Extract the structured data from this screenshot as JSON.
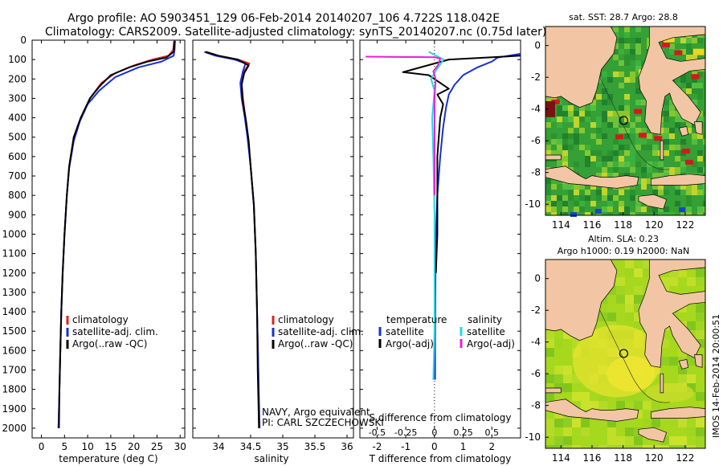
{
  "header": {
    "line1": "Argo profile: AO 5903451_129 06-Feb-2014 20140207_106 4.722S 118.042E",
    "line2": "Climatology: CARS2009. Satellite-adjusted climatology: synTS_20140207.nc (0.75d later)"
  },
  "colors": {
    "climatology": "#e0241b",
    "satellite": "#1530d8",
    "argo": "#000000",
    "sat_salinity": "#22d8e6",
    "argo_salinity": "#e81ed8",
    "land": "#f2c6a4",
    "sea_green": "#3aa83a",
    "sla_green": "#9ad420"
  },
  "chart_data": [
    {
      "type": "line",
      "title": "",
      "xlabel": "temperature (deg C)",
      "ylabel": "",
      "xlim": [
        -2,
        31
      ],
      "ylim": [
        2050,
        0
      ],
      "xticks": [
        0,
        5,
        10,
        15,
        20,
        25,
        30
      ],
      "yticks": [
        0,
        100,
        200,
        300,
        400,
        500,
        600,
        700,
        800,
        900,
        1000,
        1100,
        1200,
        1300,
        1400,
        1500,
        1600,
        1700,
        1800,
        1900,
        2000
      ],
      "legend": [
        "climatology",
        "satellite-adj. clim.",
        "Argo(..raw -QC)"
      ],
      "series": [
        {
          "name": "climatology",
          "color": "#e0241b",
          "points": [
            [
              28.7,
              0
            ],
            [
              28.5,
              50
            ],
            [
              27.5,
              80
            ],
            [
              24,
              100
            ],
            [
              20,
              130
            ],
            [
              16,
              170
            ],
            [
              13,
              220
            ],
            [
              10.5,
              300
            ],
            [
              8.5,
              400
            ],
            [
              7,
              500
            ],
            [
              6,
              650
            ],
            [
              5.5,
              800
            ],
            [
              5,
              1000
            ],
            [
              4.6,
              1200
            ],
            [
              4.3,
              1400
            ],
            [
              4.1,
              1600
            ],
            [
              3.9,
              1800
            ],
            [
              3.7,
              2000
            ]
          ]
        },
        {
          "name": "satellite-adj. clim.",
          "color": "#1530d8",
          "points": [
            [
              28.9,
              0
            ],
            [
              28.8,
              50
            ],
            [
              28.6,
              80
            ],
            [
              26,
              110
            ],
            [
              21,
              140
            ],
            [
              16,
              190
            ],
            [
              12.5,
              260
            ],
            [
              10,
              330
            ],
            [
              8.3,
              420
            ],
            [
              7,
              520
            ],
            [
              6,
              660
            ],
            [
              5.5,
              800
            ],
            [
              5,
              1000
            ],
            [
              4.6,
              1200
            ],
            [
              4.3,
              1400
            ],
            [
              4.1,
              1600
            ],
            [
              3.9,
              1800
            ],
            [
              3.7,
              2000
            ]
          ]
        },
        {
          "name": "Argo(..raw -QC)",
          "color": "#000000",
          "points": [
            [
              28.8,
              5
            ],
            [
              28.6,
              60
            ],
            [
              27,
              90
            ],
            [
              23,
              110
            ],
            [
              19,
              140
            ],
            [
              15,
              180
            ],
            [
              12.5,
              240
            ],
            [
              10.5,
              300
            ],
            [
              8.5,
              400
            ],
            [
              7,
              500
            ],
            [
              6,
              650
            ],
            [
              5.5,
              800
            ],
            [
              5,
              1000
            ],
            [
              4.6,
              1200
            ],
            [
              4.3,
              1400
            ],
            [
              4.1,
              1600
            ],
            [
              3.9,
              1800
            ],
            [
              3.8,
              2000
            ]
          ]
        }
      ]
    },
    {
      "type": "line",
      "title": "",
      "xlabel": "salinity",
      "xlim": [
        33.6,
        36.1
      ],
      "ylim": [
        2050,
        0
      ],
      "xticks": [
        34,
        34.5,
        35,
        35.5,
        36
      ],
      "legend": [
        "climatology",
        "satellite-adj. clim.",
        "Argo(..raw -QC)"
      ],
      "annotation": [
        "NAVY, Argo equivalent",
        "PI: CARL SZCZECHOWSKI"
      ],
      "series": [
        {
          "name": "climatology",
          "color": "#e0241b",
          "points": [
            [
              33.8,
              60
            ],
            [
              34.0,
              80
            ],
            [
              34.3,
              100
            ],
            [
              34.48,
              120
            ],
            [
              34.4,
              160
            ],
            [
              34.36,
              220
            ],
            [
              34.38,
              300
            ],
            [
              34.42,
              400
            ],
            [
              34.46,
              500
            ],
            [
              34.5,
              650
            ],
            [
              34.55,
              850
            ],
            [
              34.58,
              1100
            ],
            [
              34.6,
              1400
            ],
            [
              34.62,
              1700
            ],
            [
              34.63,
              2000
            ]
          ]
        },
        {
          "name": "satellite-adj. clim.",
          "color": "#1530d8",
          "points": [
            [
              33.78,
              60
            ],
            [
              33.95,
              80
            ],
            [
              34.25,
              100
            ],
            [
              34.42,
              120
            ],
            [
              34.38,
              160
            ],
            [
              34.34,
              220
            ],
            [
              34.36,
              300
            ],
            [
              34.41,
              400
            ],
            [
              34.45,
              500
            ],
            [
              34.5,
              650
            ],
            [
              34.55,
              850
            ],
            [
              34.58,
              1100
            ],
            [
              34.6,
              1400
            ],
            [
              34.62,
              1700
            ],
            [
              34.64,
              2000
            ]
          ]
        },
        {
          "name": "Argo(..raw -QC)",
          "color": "#000000",
          "points": [
            [
              33.8,
              60
            ],
            [
              34.0,
              80
            ],
            [
              34.3,
              100
            ],
            [
              34.47,
              130
            ],
            [
              34.4,
              170
            ],
            [
              34.36,
              230
            ],
            [
              34.38,
              320
            ],
            [
              34.43,
              420
            ],
            [
              34.47,
              520
            ],
            [
              34.5,
              650
            ],
            [
              34.55,
              850
            ],
            [
              34.58,
              1100
            ],
            [
              34.6,
              1400
            ],
            [
              34.61,
              1700
            ],
            [
              34.63,
              2000
            ]
          ]
        }
      ]
    },
    {
      "type": "line",
      "title": "",
      "xlabel": "T difference from climatology",
      "xlabel2": "S difference from climatology",
      "xlim": [
        -2.6,
        3.0
      ],
      "ylim": [
        2050,
        0
      ],
      "xticks": [
        -2,
        -1,
        0,
        1,
        2
      ],
      "xticks_s": [
        "-0.5",
        "-0.25",
        "0",
        "0.25",
        "0.5"
      ],
      "xticks_s_values": [
        -0.5,
        -0.25,
        0,
        0.25,
        0.5
      ],
      "legend_temperature_title": "temperature",
      "legend_salinity_title": "salinity",
      "legend": [
        "satellite",
        "Argo(-adj)",
        "satellite",
        "Argo(-adj)"
      ],
      "series": [
        {
          "name": "T satellite",
          "color": "#1530d8",
          "points": [
            [
              3,
              70
            ],
            [
              2.2,
              90
            ],
            [
              2,
              110
            ],
            [
              1.5,
              140
            ],
            [
              1.0,
              180
            ],
            [
              0.7,
              230
            ],
            [
              0.5,
              280
            ],
            [
              0.4,
              350
            ],
            [
              0.3,
              450
            ],
            [
              0.2,
              600
            ],
            [
              0.1,
              800
            ],
            [
              0.05,
              1000
            ],
            [
              0.03,
              1300
            ],
            [
              0.02,
              1600
            ],
            [
              0.02,
              1750
            ]
          ]
        },
        {
          "name": "T Argo(-adj)",
          "color": "#000000",
          "points": [
            [
              3,
              80
            ],
            [
              0.5,
              100
            ],
            [
              -1.1,
              165
            ],
            [
              -0.2,
              180
            ],
            [
              0.5,
              250
            ],
            [
              0.1,
              280
            ],
            [
              0.3,
              330
            ],
            [
              0.2,
              400
            ],
            [
              0.1,
              600
            ],
            [
              0.1,
              800
            ],
            [
              0.1,
              1000
            ],
            [
              0.05,
              1200
            ]
          ]
        },
        {
          "name": "S satellite",
          "color": "#22d8e6",
          "points": [
            [
              -0.05,
              60
            ],
            [
              0.08,
              100
            ],
            [
              0.02,
              150
            ],
            [
              -0.03,
              200
            ],
            [
              0.0,
              260
            ],
            [
              -0.02,
              400
            ],
            [
              -0.01,
              600
            ],
            [
              0.0,
              900
            ],
            [
              0.0,
              1200
            ],
            [
              0.0,
              1500
            ],
            [
              -0.01,
              1750
            ]
          ]
        },
        {
          "name": "S Argo(-adj)",
          "color": "#e81ed8",
          "points": [
            [
              -0.6,
              85
            ],
            [
              0.0,
              88
            ],
            [
              0.05,
              95
            ],
            [
              0.03,
              130
            ],
            [
              -0.01,
              160
            ],
            [
              0.01,
              200
            ],
            [
              0.0,
              300
            ],
            [
              0.0,
              500
            ],
            [
              0.0,
              800
            ]
          ]
        }
      ]
    }
  ],
  "maps": {
    "sst": {
      "title": "sat. SST: 28.7 Argo: 28.8",
      "xticks": [
        "114",
        "116",
        "118",
        "120",
        "122"
      ],
      "yticks": [
        "0",
        "-2",
        "-4",
        "-6",
        "-8",
        "-10"
      ],
      "xtick_values": [
        114,
        116,
        118,
        120,
        122
      ],
      "ytick_values": [
        0,
        -2,
        -4,
        -6,
        -8,
        -10
      ],
      "xlim": [
        113,
        123.3
      ],
      "ylim": [
        -10.7,
        1.2
      ]
    },
    "sla": {
      "title1": "Altim. SLA: 0.23",
      "title2": "Argo h1000: 0.19 h2000: NaN",
      "xticks": [
        "114",
        "116",
        "118",
        "120",
        "122"
      ],
      "yticks": [
        "0",
        "-2",
        "-4",
        "-6",
        "-8",
        "-10"
      ],
      "xtick_values": [
        114,
        116,
        118,
        120,
        122
      ],
      "ytick_values": [
        0,
        -2,
        -4,
        -6,
        -8,
        -10
      ],
      "xlim": [
        113,
        123.3
      ],
      "ylim": [
        -10.7,
        1.2
      ]
    },
    "float_position": {
      "lon": 118.042,
      "lat": -4.722
    }
  },
  "footer_stamp": "IMOS 14-Feb-2014 20:00:51"
}
